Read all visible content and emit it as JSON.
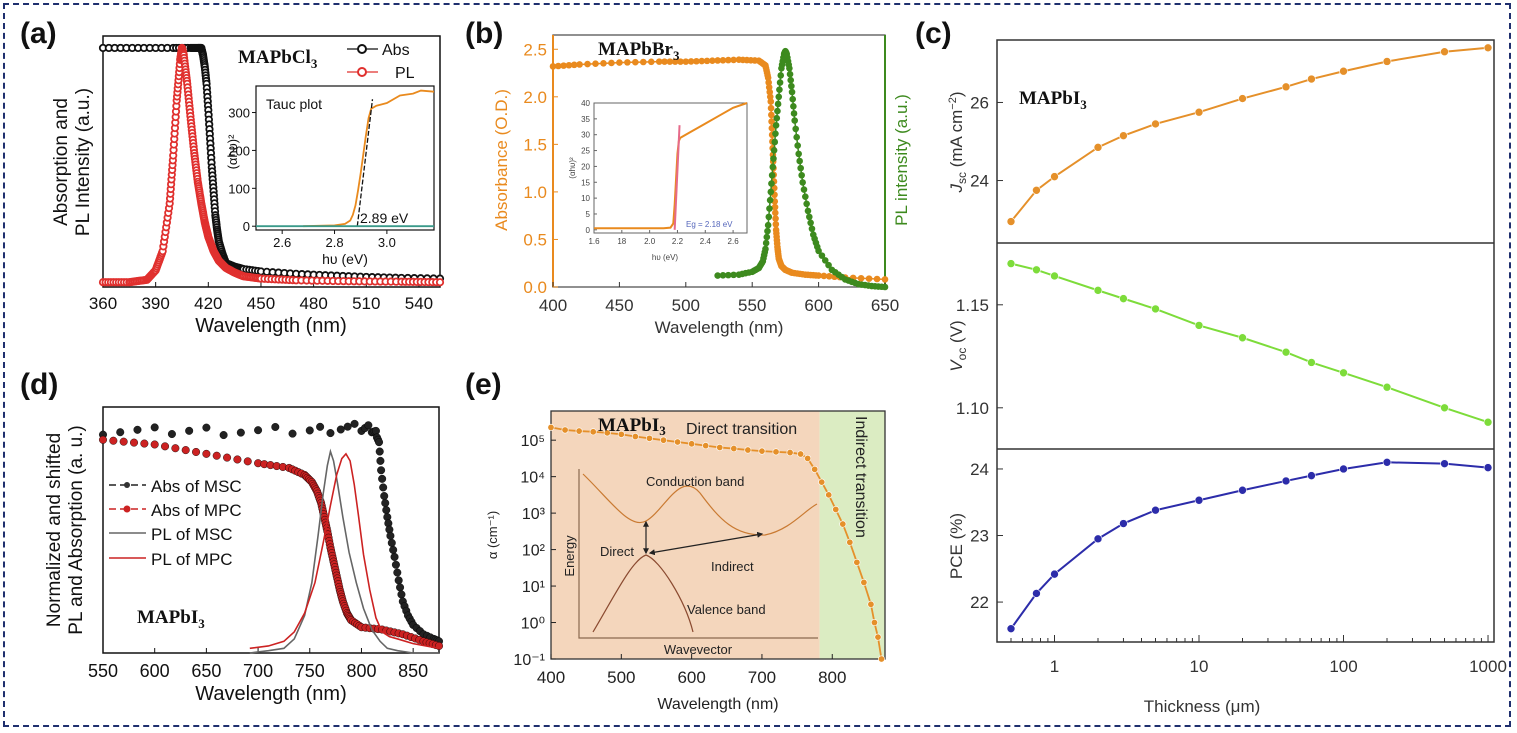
{
  "figure": {
    "border_color": "#1f2f6e",
    "panels": [
      "(a)",
      "(b)",
      "(c)",
      "(d)",
      "(e)"
    ]
  },
  "chart_data": [
    {
      "id": "a",
      "panel_label": "(a)",
      "type": "scatter",
      "title": "MAPbCl3",
      "xlabel": "Wavelength (nm)",
      "ylabel_lines": [
        "Absorption and",
        "PL Intensity (a.u.)"
      ],
      "xlim": [
        360,
        552
      ],
      "ylim": [
        0,
        1.05
      ],
      "xticks": [
        360,
        390,
        420,
        450,
        480,
        510,
        540
      ],
      "legend": {
        "placement": "top-right",
        "entries": [
          {
            "name": "Abs",
            "color": "#111111"
          },
          {
            "name": "PL",
            "color": "#e0302e"
          }
        ]
      },
      "series": [
        {
          "name": "Abs",
          "color": "#111111",
          "x": [
            360,
            380,
            400,
            410,
            414,
            416,
            417,
            418,
            419,
            420,
            421,
            422,
            423,
            424,
            425,
            426,
            428,
            430,
            435,
            440,
            450,
            470,
            490,
            510,
            530,
            552
          ],
          "y": [
            1.0,
            1.0,
            1.0,
            1.0,
            1.0,
            1.0,
            0.97,
            0.92,
            0.85,
            0.74,
            0.62,
            0.5,
            0.4,
            0.3,
            0.24,
            0.19,
            0.14,
            0.1,
            0.085,
            0.075,
            0.065,
            0.055,
            0.048,
            0.042,
            0.038,
            0.035
          ]
        },
        {
          "name": "PL",
          "color": "#e0302e",
          "x": [
            360,
            375,
            385,
            390,
            394,
            398,
            400,
            402,
            404,
            405,
            406,
            408,
            410,
            412,
            414,
            416,
            418,
            420,
            423,
            426,
            430,
            435,
            440,
            450,
            470,
            500,
            530,
            552
          ],
          "y": [
            0.02,
            0.02,
            0.03,
            0.07,
            0.15,
            0.35,
            0.55,
            0.78,
            0.95,
            1.0,
            0.97,
            0.85,
            0.7,
            0.56,
            0.44,
            0.35,
            0.27,
            0.21,
            0.15,
            0.11,
            0.08,
            0.06,
            0.045,
            0.035,
            0.028,
            0.024,
            0.022,
            0.02
          ]
        }
      ],
      "inset": {
        "title": "Tauc plot",
        "xlabel": "hυ (eV)",
        "ylabel": "(αhυ)²",
        "xlim": [
          2.5,
          3.18
        ],
        "ylim": [
          -10,
          370
        ],
        "xticks": [
          2.6,
          2.8,
          3.0
        ],
        "yticks": [
          0,
          100,
          200,
          300
        ],
        "annotation": "2.89 eV",
        "series": [
          {
            "name": "Tauc",
            "color": "#e98a1e",
            "x": [
              2.68,
              2.8,
              2.84,
              2.86,
              2.87,
              2.88,
              2.89,
              2.9,
              2.91,
              2.92,
              2.93,
              2.94,
              2.96,
              3.0,
              3.05,
              3.1,
              3.13,
              3.18
            ],
            "y": [
              0,
              2,
              6,
              15,
              30,
              55,
              95,
              140,
              190,
              240,
              285,
              310,
              318,
              325,
              345,
              350,
              358,
              355
            ]
          },
          {
            "name": "Linear fit",
            "color": "#111111",
            "dashed": true,
            "x": [
              2.887,
              2.945
            ],
            "y": [
              0,
              335
            ]
          },
          {
            "name": "Baseline",
            "color": "#3a9a8a",
            "x": [
              2.5,
              3.18
            ],
            "y": [
              0,
              0
            ]
          }
        ]
      }
    },
    {
      "id": "b",
      "panel_label": "(b)",
      "type": "scatter",
      "title": "MAPbBr3",
      "xlabel": "Wavelength (nm)",
      "ylabel": "Absorbance (O.D.)",
      "ylabel_right": "PL intensity (a.u.)",
      "xlim": [
        400,
        650
      ],
      "ylim": [
        0,
        2.65
      ],
      "xticks": [
        400,
        450,
        500,
        550,
        600,
        650
      ],
      "yticks": [
        0.0,
        0.5,
        1.0,
        1.5,
        2.0,
        2.5
      ],
      "series": [
        {
          "name": "Absorbance",
          "color": "#e98a1e",
          "x": [
            400,
            420,
            450,
            480,
            500,
            520,
            540,
            555,
            560,
            562,
            564,
            565,
            566,
            567,
            568,
            569,
            570,
            572,
            575,
            580,
            590,
            600,
            620,
            650
          ],
          "y": [
            2.32,
            2.34,
            2.36,
            2.37,
            2.37,
            2.38,
            2.39,
            2.38,
            2.33,
            2.2,
            1.95,
            1.6,
            1.25,
            0.9,
            0.6,
            0.42,
            0.3,
            0.22,
            0.18,
            0.15,
            0.13,
            0.12,
            0.1,
            0.08
          ]
        },
        {
          "name": "PL",
          "color": "#3d8a1e",
          "x": [
            524,
            540,
            550,
            555,
            558,
            560,
            562,
            564,
            566,
            568,
            570,
            572,
            574,
            575,
            576,
            578,
            580,
            582,
            585,
            588,
            592,
            596,
            600,
            610,
            620,
            630,
            640,
            650
          ],
          "y": [
            0.12,
            0.13,
            0.16,
            0.2,
            0.27,
            0.4,
            0.65,
            1.0,
            1.35,
            1.7,
            2.0,
            2.3,
            2.45,
            2.48,
            2.45,
            2.3,
            2.05,
            1.75,
            1.4,
            1.1,
            0.8,
            0.55,
            0.38,
            0.18,
            0.08,
            0.03,
            0.01,
            0.0
          ]
        }
      ],
      "inset": {
        "xlabel": "hυ (eV)",
        "ylabel": "(αhυ)²",
        "xlim": [
          1.6,
          2.7
        ],
        "ylim": [
          -1,
          40
        ],
        "xtick_labels": [
          "1.6",
          "18",
          "2.0",
          "2.2",
          "2.4",
          "2.6"
        ],
        "xticks": [
          1.6,
          1.8,
          2.0,
          2.2,
          2.4,
          2.6
        ],
        "yticks": [
          0,
          5,
          10,
          15,
          20,
          25,
          30,
          35,
          40
        ],
        "annotation": "Eg = 2.18 eV",
        "series": [
          {
            "name": "Tauc",
            "color": "#e98a1e",
            "x": [
              1.6,
              1.8,
              2.0,
              2.1,
              2.15,
              2.17,
              2.18,
              2.19,
              2.2,
              2.21,
              2.22,
              2.3,
              2.4,
              2.5,
              2.6,
              2.7
            ],
            "y": [
              0.5,
              0.5,
              0.5,
              0.5,
              0.7,
              2,
              8,
              16,
              24,
              28,
              29,
              31,
              33.5,
              36,
              38.5,
              40
            ]
          },
          {
            "name": "Linear fit",
            "color": "#e66a8a",
            "x": [
              2.18,
              2.215
            ],
            "y": [
              0,
              33
            ]
          }
        ]
      }
    },
    {
      "id": "c",
      "panel_label": "(c)",
      "type": "line",
      "title": "MAPbI3",
      "xlabel": "Thickness (μm)",
      "xscale": "log",
      "xlim": [
        0.4,
        1100
      ],
      "xticks": [
        1,
        10,
        100,
        1000
      ],
      "x": [
        0.5,
        0.75,
        1,
        2,
        3,
        5,
        10,
        20,
        40,
        60,
        100,
        200,
        500,
        1000
      ],
      "subplots": [
        {
          "name": "Jsc",
          "ylabel": "Jsc (mA cm⁻²)",
          "color": "#e5902a",
          "ylim": [
            22.4,
            27.6
          ],
          "yticks": [
            24,
            26
          ],
          "values": [
            22.95,
            23.75,
            24.1,
            24.85,
            25.15,
            25.45,
            25.75,
            26.1,
            26.4,
            26.6,
            26.8,
            27.05,
            27.3,
            27.4
          ]
        },
        {
          "name": "Voc",
          "ylabel": "Voc (V)",
          "color": "#7ddc3a",
          "ylim": [
            1.08,
            1.18
          ],
          "yticks": [
            1.1,
            1.15
          ],
          "values": [
            1.17,
            1.167,
            1.164,
            1.157,
            1.153,
            1.148,
            1.14,
            1.134,
            1.127,
            1.122,
            1.117,
            1.11,
            1.1,
            1.093
          ]
        },
        {
          "name": "PCE",
          "ylabel": "PCE (%)",
          "color": "#2c2caa",
          "ylim": [
            21.4,
            24.3
          ],
          "yticks": [
            22,
            23,
            24
          ],
          "values": [
            21.6,
            22.13,
            22.42,
            22.95,
            23.18,
            23.38,
            23.53,
            23.68,
            23.82,
            23.9,
            24.0,
            24.1,
            24.08,
            24.02
          ]
        }
      ]
    },
    {
      "id": "d",
      "panel_label": "(d)",
      "type": "scatter",
      "title": "MAPbI3",
      "xlabel": "Wavelength (nm)",
      "ylabel_lines": [
        "Normalized and shifted",
        "PL and Absorption (a. u.)"
      ],
      "xlim": [
        550,
        875
      ],
      "ylim": [
        0,
        1.05
      ],
      "xticks": [
        550,
        600,
        650,
        700,
        750,
        800,
        850
      ],
      "legend": {
        "placement": "center-left",
        "entries": [
          {
            "name": "Abs of MSC",
            "color": "#222222",
            "style": "dash-dot-marker"
          },
          {
            "name": "Abs of MPC",
            "color": "#cc2222",
            "style": "dash-dot-marker"
          },
          {
            "name": "PL of MSC",
            "color": "#666666",
            "style": "line"
          },
          {
            "name": "PL of MPC",
            "color": "#cc2222",
            "style": "line"
          }
        ]
      },
      "series": [
        {
          "name": "Abs of MSC",
          "color": "#222222",
          "marker": true,
          "x": [
            550,
            600,
            650,
            700,
            750,
            780,
            800,
            810,
            814,
            817,
            819,
            822,
            825,
            828,
            832,
            836,
            840,
            845,
            850,
            860,
            870,
            875
          ],
          "y": [
            0.95,
            0.945,
            0.95,
            0.945,
            0.95,
            0.96,
            0.96,
            0.96,
            0.93,
            0.9,
            0.78,
            0.67,
            0.58,
            0.5,
            0.41,
            0.31,
            0.22,
            0.16,
            0.12,
            0.08,
            0.06,
            0.05
          ]
        },
        {
          "name": "Abs of MPC",
          "color": "#cc2222",
          "marker": true,
          "x": [
            550,
            600,
            650,
            700,
            730,
            745,
            752,
            757,
            761,
            764,
            767,
            770,
            773,
            776,
            779,
            782,
            786,
            790,
            800,
            820,
            840,
            860,
            875
          ],
          "y": [
            0.91,
            0.89,
            0.85,
            0.81,
            0.79,
            0.76,
            0.73,
            0.69,
            0.64,
            0.58,
            0.52,
            0.45,
            0.39,
            0.33,
            0.27,
            0.22,
            0.17,
            0.14,
            0.11,
            0.1,
            0.08,
            0.05,
            0.03
          ]
        },
        {
          "name": "PL of MSC",
          "color": "#666666",
          "marker": false,
          "x": [
            692,
            710,
            725,
            735,
            745,
            752,
            758,
            763,
            767,
            770,
            773,
            777,
            782,
            788,
            795,
            802,
            810,
            818,
            825,
            835,
            850,
            875
          ],
          "y": [
            0.0,
            0.01,
            0.02,
            0.06,
            0.16,
            0.3,
            0.5,
            0.68,
            0.8,
            0.86,
            0.82,
            0.72,
            0.58,
            0.43,
            0.3,
            0.19,
            0.1,
            0.05,
            0.02,
            0.01,
            0.0,
            0.0
          ]
        },
        {
          "name": "PL of MPC",
          "color": "#cc2222",
          "marker": false,
          "x": [
            692,
            710,
            725,
            735,
            745,
            755,
            763,
            770,
            776,
            781,
            785,
            789,
            793,
            797,
            802,
            808,
            814,
            820,
            827,
            835,
            850,
            875
          ],
          "y": [
            0.02,
            0.03,
            0.05,
            0.09,
            0.17,
            0.3,
            0.47,
            0.63,
            0.76,
            0.83,
            0.85,
            0.82,
            0.72,
            0.59,
            0.42,
            0.27,
            0.15,
            0.09,
            0.07,
            0.06,
            0.04,
            0.02
          ]
        }
      ]
    },
    {
      "id": "e",
      "panel_label": "(e)",
      "type": "line",
      "title": "MAPbI3",
      "xlabel": "Wavelength (nm)",
      "ylabel": "α (cm⁻¹)",
      "yscale": "log",
      "xlim": [
        400,
        875
      ],
      "ylim_exp": [
        -1,
        5.8
      ],
      "xticks": [
        400,
        500,
        600,
        700,
        800
      ],
      "ytick_labels": [
        "10⁻¹",
        "10⁰",
        "10¹",
        "10²",
        "10³",
        "10⁴",
        "10⁵"
      ],
      "yticks_exp": [
        -1,
        0,
        1,
        2,
        3,
        4,
        5
      ],
      "regions": [
        {
          "label": "Direct transition",
          "from": 400,
          "to": 782,
          "color": "#f4d6bc"
        },
        {
          "label": "Indirect transition",
          "from": 782,
          "to": 875,
          "color": "#dbecc2"
        }
      ],
      "series": [
        {
          "name": "alpha",
          "color": "#e5902a",
          "x": [
            400,
            420,
            440,
            460,
            480,
            500,
            520,
            540,
            560,
            580,
            600,
            620,
            640,
            660,
            680,
            700,
            720,
            740,
            755,
            765,
            775,
            785,
            795,
            805,
            815,
            825,
            835,
            845,
            855,
            860,
            865,
            870
          ],
          "log10y": [
            5.35,
            5.28,
            5.25,
            5.23,
            5.2,
            5.16,
            5.1,
            5.05,
            5.0,
            4.95,
            4.9,
            4.85,
            4.8,
            4.77,
            4.73,
            4.7,
            4.68,
            4.66,
            4.62,
            4.5,
            4.2,
            3.85,
            3.5,
            3.1,
            2.7,
            2.2,
            1.65,
            1.1,
            0.5,
            0.0,
            -0.4,
            -1.0
          ]
        }
      ],
      "inset_diagram": {
        "xlabel": "Wavevector",
        "ylabel": "Energy",
        "labels": {
          "conduction": "Conduction band",
          "valence": "Valence band",
          "direct": "Direct",
          "indirect": "Indirect"
        }
      }
    }
  ]
}
